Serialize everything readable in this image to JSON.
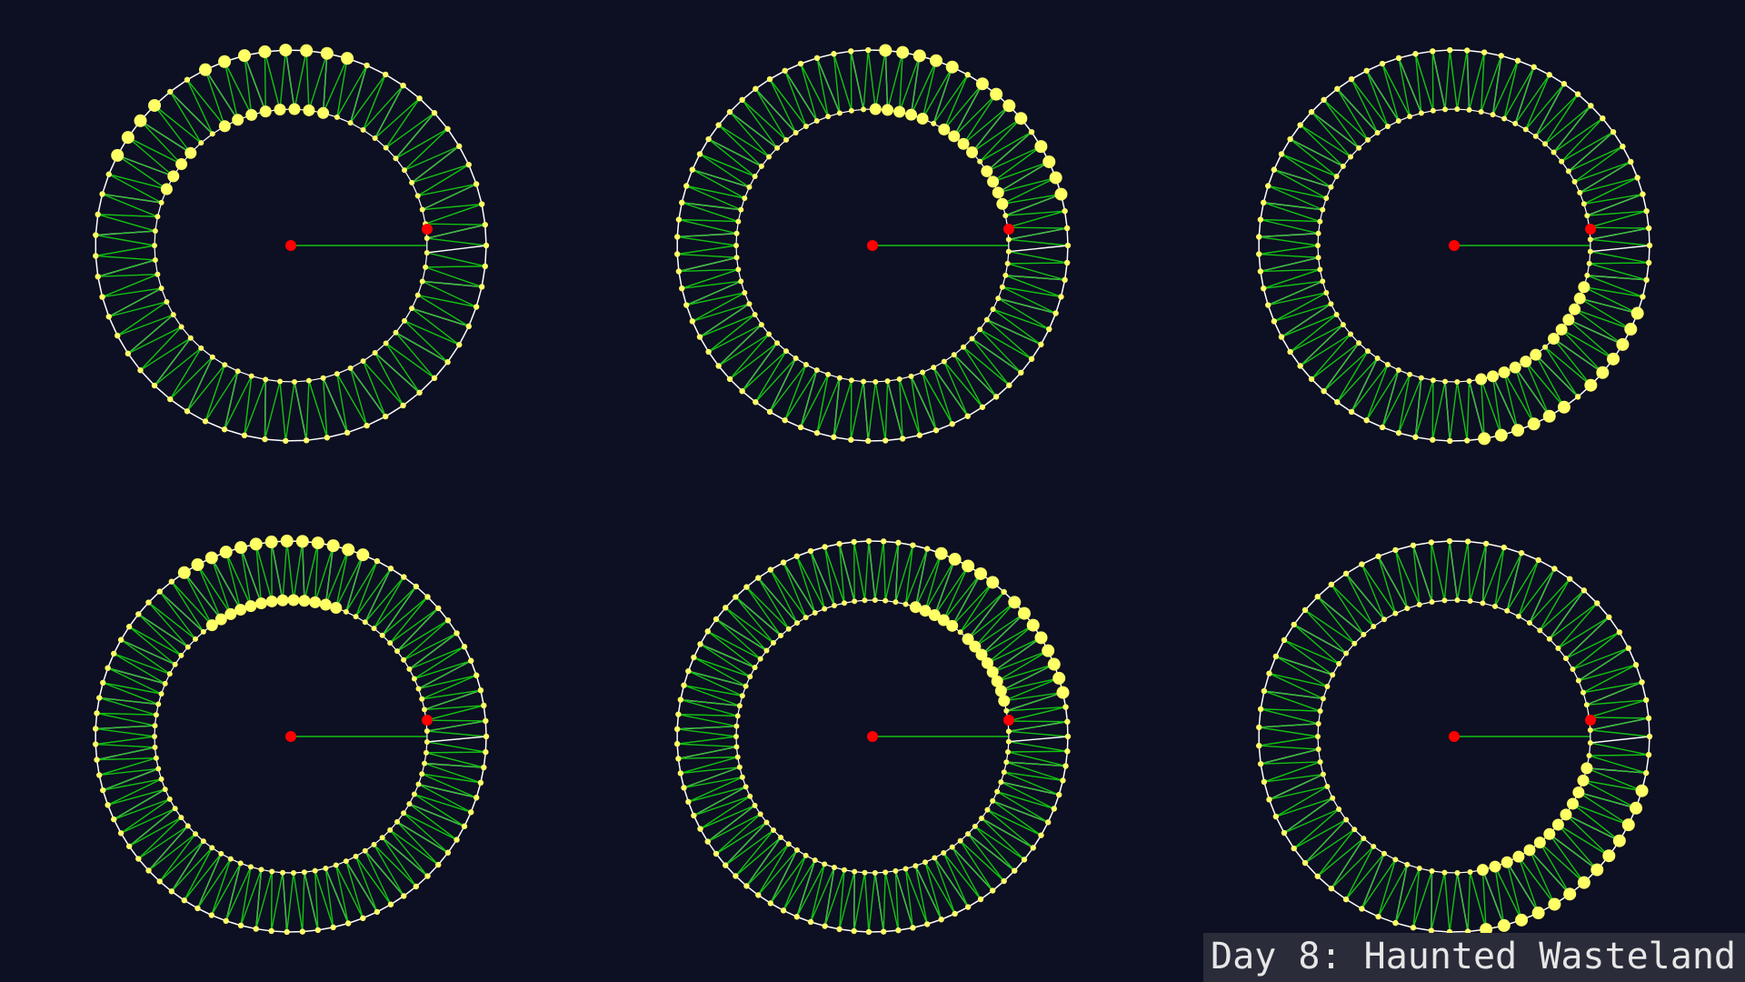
{
  "caption": "Day 8: Haunted Wasteland",
  "colors": {
    "background": "#0d0f22",
    "outer_edge": "#ffffff",
    "inner_edge": "#13c013",
    "node": "#ffff66",
    "start_node": "#ff0000",
    "center": "#ff0000",
    "spoke": "#13c013",
    "caption_bg": "#2a2c3a",
    "caption_text": "#e6e6e6"
  },
  "graphs": [
    {
      "id": "graph-1",
      "pairs": 59,
      "start": 0,
      "highlight": [
        12,
        13,
        14,
        15,
        16,
        17,
        18,
        19,
        22,
        23,
        24,
        25
      ]
    },
    {
      "id": "graph-2",
      "pairs": 71,
      "start": 0,
      "highlight": [
        3,
        4,
        5,
        6,
        8,
        9,
        10,
        11,
        13,
        14,
        15,
        16,
        17
      ]
    },
    {
      "id": "graph-3",
      "pairs": 71,
      "start": 0,
      "highlight": [
        55,
        56,
        57,
        58,
        59,
        60,
        62,
        63,
        64,
        65,
        66,
        67
      ]
    },
    {
      "id": "graph-4",
      "pairs": 79,
      "start": 0,
      "highlight": [
        15,
        16,
        17,
        18,
        19,
        20,
        21,
        22,
        23,
        24,
        25,
        26,
        27
      ]
    },
    {
      "id": "graph-5",
      "pairs": 83,
      "start": 0,
      "highlight": [
        3,
        4,
        5,
        6,
        7,
        8,
        9,
        10,
        12,
        13,
        14,
        15,
        16
      ]
    },
    {
      "id": "graph-6",
      "pairs": 67,
      "start": 0,
      "highlight": [
        52,
        53,
        54,
        55,
        56,
        57,
        58,
        59,
        60,
        61,
        62,
        63,
        64
      ]
    }
  ]
}
